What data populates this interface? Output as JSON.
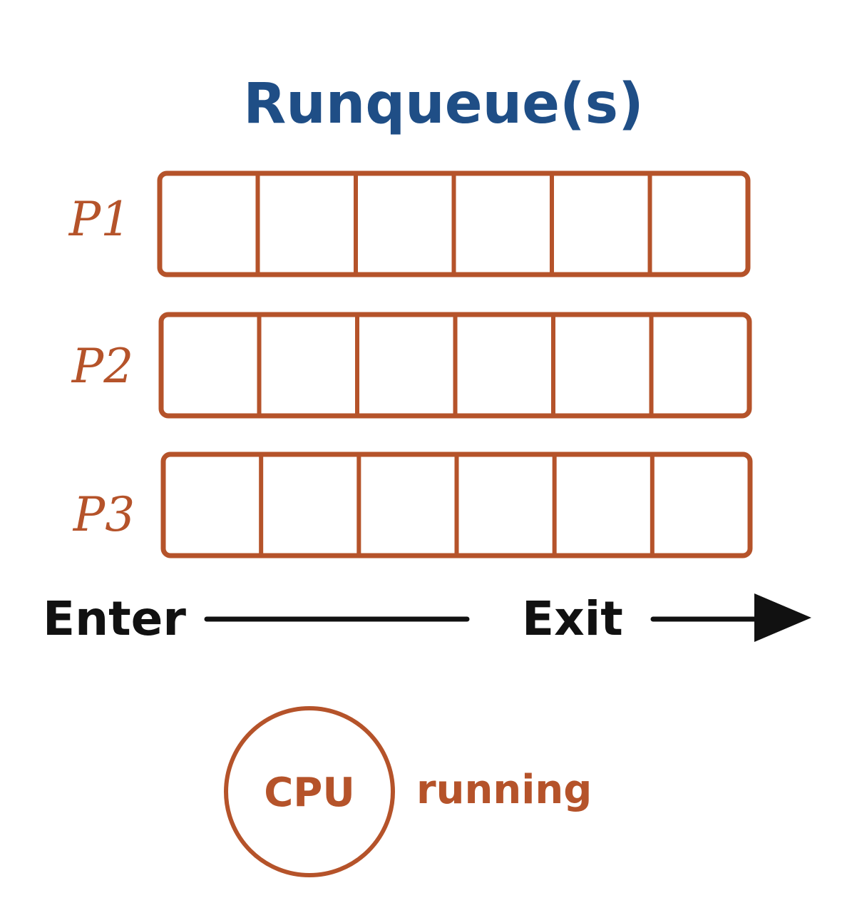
{
  "title": "Runqueue(s)",
  "queues": [
    {
      "label": "P1",
      "slots": 6
    },
    {
      "label": "P2",
      "slots": 6
    },
    {
      "label": "P3",
      "slots": 6
    }
  ],
  "flow": {
    "enter_label": "Enter",
    "exit_label": "Exit"
  },
  "cpu": {
    "label": "CPU",
    "state": "running"
  },
  "colors": {
    "title": "#1f4e86",
    "queue": "#b5532a",
    "flow": "#111111"
  }
}
